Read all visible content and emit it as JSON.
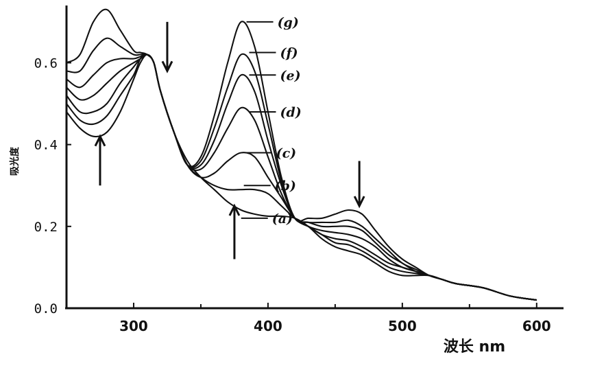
{
  "chart_data": {
    "type": "line",
    "title": "",
    "xlabel": "波长 nm",
    "ylabel": "吸光度",
    "xlim": [
      250,
      620
    ],
    "ylim": [
      0,
      0.74
    ],
    "x_ticks": [
      300,
      400,
      500,
      600
    ],
    "y_ticks": [
      0.0,
      0.2,
      0.4,
      0.6
    ],
    "x_tick_labels": [
      "300",
      "400",
      "500",
      "600"
    ],
    "y_tick_labels": [
      "0.0",
      "0.2",
      "0.4",
      "0.6"
    ],
    "grid": false,
    "legend": "labels beside curves",
    "series": [
      {
        "name": "(a)",
        "label_point": [
          380,
          0.22
        ],
        "points": [
          [
            250,
            0.48
          ],
          [
            260,
            0.44
          ],
          [
            270,
            0.42
          ],
          [
            280,
            0.43
          ],
          [
            290,
            0.48
          ],
          [
            300,
            0.56
          ],
          [
            305,
            0.6
          ],
          [
            310,
            0.62
          ],
          [
            315,
            0.6
          ],
          [
            320,
            0.53
          ],
          [
            330,
            0.43
          ],
          [
            340,
            0.36
          ],
          [
            350,
            0.32
          ],
          [
            360,
            0.29
          ],
          [
            370,
            0.26
          ],
          [
            380,
            0.24
          ],
          [
            390,
            0.23
          ],
          [
            400,
            0.225
          ],
          [
            410,
            0.225
          ],
          [
            420,
            0.22
          ],
          [
            430,
            0.2
          ],
          [
            440,
            0.17
          ],
          [
            450,
            0.15
          ],
          [
            460,
            0.14
          ],
          [
            470,
            0.13
          ],
          [
            480,
            0.11
          ],
          [
            490,
            0.09
          ],
          [
            500,
            0.08
          ],
          [
            510,
            0.08
          ],
          [
            520,
            0.08
          ],
          [
            530,
            0.07
          ],
          [
            540,
            0.06
          ],
          [
            560,
            0.05
          ],
          [
            580,
            0.03
          ],
          [
            600,
            0.02
          ]
        ]
      },
      {
        "name": "(b)",
        "label_point": [
          382,
          0.3
        ],
        "points": [
          [
            250,
            0.5
          ],
          [
            260,
            0.46
          ],
          [
            270,
            0.45
          ],
          [
            280,
            0.47
          ],
          [
            290,
            0.52
          ],
          [
            300,
            0.57
          ],
          [
            305,
            0.61
          ],
          [
            310,
            0.62
          ],
          [
            315,
            0.6
          ],
          [
            320,
            0.53
          ],
          [
            330,
            0.43
          ],
          [
            340,
            0.35
          ],
          [
            350,
            0.32
          ],
          [
            360,
            0.3
          ],
          [
            370,
            0.29
          ],
          [
            380,
            0.29
          ],
          [
            390,
            0.29
          ],
          [
            400,
            0.28
          ],
          [
            410,
            0.25
          ],
          [
            420,
            0.22
          ],
          [
            430,
            0.2
          ],
          [
            440,
            0.18
          ],
          [
            450,
            0.16
          ],
          [
            460,
            0.155
          ],
          [
            470,
            0.14
          ],
          [
            480,
            0.12
          ],
          [
            490,
            0.1
          ],
          [
            500,
            0.09
          ],
          [
            510,
            0.085
          ],
          [
            520,
            0.08
          ],
          [
            530,
            0.07
          ],
          [
            540,
            0.06
          ],
          [
            560,
            0.05
          ],
          [
            580,
            0.03
          ],
          [
            600,
            0.02
          ]
        ]
      },
      {
        "name": "(c)",
        "label_point": [
          383,
          0.38
        ],
        "points": [
          [
            250,
            0.52
          ],
          [
            260,
            0.48
          ],
          [
            270,
            0.48
          ],
          [
            280,
            0.5
          ],
          [
            290,
            0.55
          ],
          [
            300,
            0.59
          ],
          [
            305,
            0.61
          ],
          [
            310,
            0.62
          ],
          [
            315,
            0.6
          ],
          [
            320,
            0.53
          ],
          [
            330,
            0.43
          ],
          [
            340,
            0.35
          ],
          [
            350,
            0.32
          ],
          [
            360,
            0.33
          ],
          [
            370,
            0.36
          ],
          [
            380,
            0.38
          ],
          [
            390,
            0.37
          ],
          [
            400,
            0.32
          ],
          [
            410,
            0.27
          ],
          [
            420,
            0.22
          ],
          [
            430,
            0.2
          ],
          [
            440,
            0.18
          ],
          [
            450,
            0.17
          ],
          [
            460,
            0.165
          ],
          [
            470,
            0.15
          ],
          [
            480,
            0.13
          ],
          [
            490,
            0.11
          ],
          [
            500,
            0.1
          ],
          [
            510,
            0.09
          ],
          [
            520,
            0.08
          ],
          [
            530,
            0.07
          ],
          [
            540,
            0.06
          ],
          [
            560,
            0.05
          ],
          [
            580,
            0.03
          ],
          [
            600,
            0.02
          ]
        ]
      },
      {
        "name": "(d)",
        "label_point": [
          386,
          0.48
        ],
        "points": [
          [
            250,
            0.54
          ],
          [
            260,
            0.51
          ],
          [
            270,
            0.52
          ],
          [
            280,
            0.55
          ],
          [
            290,
            0.58
          ],
          [
            300,
            0.6
          ],
          [
            305,
            0.61
          ],
          [
            310,
            0.62
          ],
          [
            315,
            0.6
          ],
          [
            320,
            0.53
          ],
          [
            330,
            0.43
          ],
          [
            340,
            0.35
          ],
          [
            350,
            0.34
          ],
          [
            360,
            0.38
          ],
          [
            370,
            0.44
          ],
          [
            380,
            0.49
          ],
          [
            390,
            0.46
          ],
          [
            400,
            0.37
          ],
          [
            410,
            0.28
          ],
          [
            420,
            0.22
          ],
          [
            430,
            0.2
          ],
          [
            440,
            0.19
          ],
          [
            450,
            0.185
          ],
          [
            460,
            0.18
          ],
          [
            470,
            0.17
          ],
          [
            480,
            0.15
          ],
          [
            490,
            0.12
          ],
          [
            500,
            0.1
          ],
          [
            510,
            0.09
          ],
          [
            520,
            0.08
          ],
          [
            530,
            0.07
          ],
          [
            540,
            0.06
          ],
          [
            560,
            0.05
          ],
          [
            580,
            0.03
          ],
          [
            600,
            0.02
          ]
        ]
      },
      {
        "name": "(e)",
        "label_point": [
          386,
          0.57
        ],
        "points": [
          [
            250,
            0.56
          ],
          [
            260,
            0.54
          ],
          [
            270,
            0.57
          ],
          [
            280,
            0.6
          ],
          [
            290,
            0.61
          ],
          [
            300,
            0.61
          ],
          [
            305,
            0.615
          ],
          [
            310,
            0.62
          ],
          [
            315,
            0.6
          ],
          [
            320,
            0.53
          ],
          [
            330,
            0.43
          ],
          [
            340,
            0.35
          ],
          [
            350,
            0.35
          ],
          [
            360,
            0.41
          ],
          [
            370,
            0.5
          ],
          [
            380,
            0.57
          ],
          [
            390,
            0.53
          ],
          [
            400,
            0.41
          ],
          [
            410,
            0.3
          ],
          [
            420,
            0.22
          ],
          [
            430,
            0.21
          ],
          [
            440,
            0.2
          ],
          [
            450,
            0.2
          ],
          [
            460,
            0.2
          ],
          [
            470,
            0.19
          ],
          [
            480,
            0.16
          ],
          [
            490,
            0.13
          ],
          [
            500,
            0.11
          ],
          [
            510,
            0.09
          ],
          [
            520,
            0.08
          ],
          [
            530,
            0.07
          ],
          [
            540,
            0.06
          ],
          [
            560,
            0.05
          ],
          [
            580,
            0.03
          ],
          [
            600,
            0.02
          ]
        ]
      },
      {
        "name": "(f)",
        "label_point": [
          386,
          0.625
        ],
        "points": [
          [
            250,
            0.58
          ],
          [
            260,
            0.58
          ],
          [
            270,
            0.63
          ],
          [
            280,
            0.66
          ],
          [
            290,
            0.64
          ],
          [
            300,
            0.62
          ],
          [
            305,
            0.62
          ],
          [
            310,
            0.62
          ],
          [
            315,
            0.6
          ],
          [
            320,
            0.53
          ],
          [
            330,
            0.43
          ],
          [
            340,
            0.35
          ],
          [
            350,
            0.36
          ],
          [
            360,
            0.44
          ],
          [
            370,
            0.54
          ],
          [
            380,
            0.62
          ],
          [
            390,
            0.58
          ],
          [
            400,
            0.45
          ],
          [
            410,
            0.31
          ],
          [
            420,
            0.22
          ],
          [
            430,
            0.21
          ],
          [
            440,
            0.21
          ],
          [
            450,
            0.21
          ],
          [
            460,
            0.215
          ],
          [
            470,
            0.2
          ],
          [
            480,
            0.17
          ],
          [
            490,
            0.14
          ],
          [
            500,
            0.11
          ],
          [
            510,
            0.095
          ],
          [
            520,
            0.08
          ],
          [
            530,
            0.07
          ],
          [
            540,
            0.06
          ],
          [
            560,
            0.05
          ],
          [
            580,
            0.03
          ],
          [
            600,
            0.02
          ]
        ]
      },
      {
        "name": "(g)",
        "label_point": [
          384,
          0.7
        ],
        "points": [
          [
            250,
            0.6
          ],
          [
            260,
            0.62
          ],
          [
            270,
            0.7
          ],
          [
            280,
            0.73
          ],
          [
            290,
            0.68
          ],
          [
            300,
            0.63
          ],
          [
            305,
            0.625
          ],
          [
            310,
            0.62
          ],
          [
            315,
            0.6
          ],
          [
            320,
            0.53
          ],
          [
            330,
            0.43
          ],
          [
            340,
            0.35
          ],
          [
            350,
            0.37
          ],
          [
            360,
            0.47
          ],
          [
            370,
            0.6
          ],
          [
            380,
            0.7
          ],
          [
            390,
            0.64
          ],
          [
            400,
            0.48
          ],
          [
            410,
            0.32
          ],
          [
            420,
            0.22
          ],
          [
            430,
            0.22
          ],
          [
            440,
            0.22
          ],
          [
            450,
            0.23
          ],
          [
            460,
            0.24
          ],
          [
            470,
            0.23
          ],
          [
            480,
            0.19
          ],
          [
            490,
            0.15
          ],
          [
            500,
            0.12
          ],
          [
            510,
            0.1
          ],
          [
            520,
            0.08
          ],
          [
            530,
            0.07
          ],
          [
            540,
            0.06
          ],
          [
            560,
            0.05
          ],
          [
            580,
            0.03
          ],
          [
            600,
            0.02
          ]
        ]
      }
    ],
    "annotations": [
      {
        "type": "arrow",
        "direction": "up",
        "x": 275,
        "y_from": 0.3,
        "y_to": 0.42
      },
      {
        "type": "arrow",
        "direction": "down",
        "x": 325,
        "y_from": 0.7,
        "y_to": 0.58
      },
      {
        "type": "arrow",
        "direction": "up",
        "x": 375,
        "y_from": 0.12,
        "y_to": 0.25
      },
      {
        "type": "arrow",
        "direction": "down",
        "x": 468,
        "y_from": 0.36,
        "y_to": 0.25
      }
    ]
  }
}
